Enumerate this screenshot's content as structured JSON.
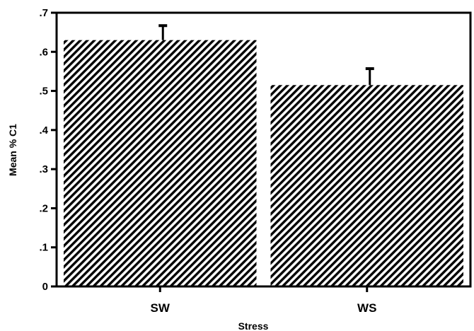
{
  "chart_data": {
    "type": "bar",
    "title": "",
    "xlabel": "Stress",
    "ylabel": "Mean % C1",
    "categories": [
      "SW",
      "WS"
    ],
    "values": [
      0.63,
      0.515
    ],
    "error_upper": [
      0.667,
      0.557
    ],
    "ylim": [
      0,
      0.7
    ],
    "yticks": [
      0,
      0.1,
      0.2,
      0.3,
      0.4,
      0.5,
      0.6,
      0.7
    ],
    "ytick_labels": [
      "0",
      ".1",
      ".2",
      ".3",
      ".4",
      ".5",
      ".6",
      ".7"
    ],
    "grid": false,
    "legend": "none",
    "bar_fill": "diagonal-hatch",
    "colors": {
      "ink": "#000000",
      "background": "#ffffff"
    }
  }
}
